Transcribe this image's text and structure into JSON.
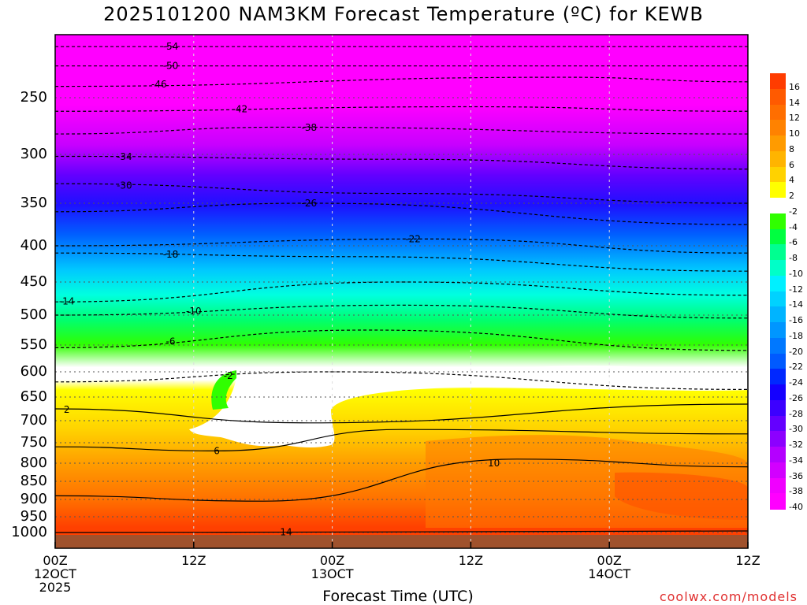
{
  "title": "2025101200 NAM3KM Forecast Temperature (ºC) for KEWB",
  "credit": "coolwx.com/models",
  "chart_data": {
    "type": "heatmap",
    "title": "2025101200 NAM3KM Forecast Temperature (ºC) for KEWB",
    "xlabel": "Forecast Time (UTC)",
    "ylabel": "",
    "x_ticks": [
      {
        "line1": "00Z",
        "line2": "12OCT",
        "line3": "2025",
        "hour": 0
      },
      {
        "line1": "12Z",
        "line2": "",
        "line3": "",
        "hour": 12
      },
      {
        "line1": "00Z",
        "line2": "13OCT",
        "line3": "",
        "hour": 24
      },
      {
        "line1": "12Z",
        "line2": "",
        "line3": "",
        "hour": 36
      },
      {
        "line1": "00Z",
        "line2": "14OCT",
        "line3": "",
        "hour": 48
      },
      {
        "line1": "12Z",
        "line2": "",
        "line3": "",
        "hour": 60
      }
    ],
    "xlim": [
      0,
      60
    ],
    "y_ticks": [
      "250",
      "300",
      "350",
      "400",
      "450",
      "500",
      "550",
      "600",
      "650",
      "700",
      "750",
      "800",
      "850",
      "900",
      "950",
      "1000"
    ],
    "y_values": [
      250,
      300,
      350,
      400,
      450,
      500,
      550,
      600,
      650,
      700,
      750,
      800,
      850,
      900,
      950,
      1000
    ],
    "ylim": [
      200,
      1030
    ],
    "colorbar": {
      "labels": [
        "16",
        "14",
        "12",
        "10",
        "8",
        "6",
        "4",
        "2",
        "-2",
        "-4",
        "-6",
        "-8",
        "-10",
        "-12",
        "-14",
        "-16",
        "-18",
        "-20",
        "-22",
        "-24",
        "-26",
        "-28",
        "-30",
        "-32",
        "-34",
        "-36",
        "-38",
        "-40"
      ],
      "colors": [
        "#ff3c00",
        "#ff5a00",
        "#ff6e00",
        "#ff8200",
        "#ff9b00",
        "#ffb400",
        "#ffd200",
        "#ffff00",
        "#ffffff",
        "#30ff00",
        "#00ff40",
        "#00ff90",
        "#00ffc8",
        "#00f0ff",
        "#00d2ff",
        "#00b4ff",
        "#0096ff",
        "#0078ff",
        "#005aff",
        "#0028ff",
        "#1400ff",
        "#3c00ff",
        "#6400ff",
        "#8c00ff",
        "#b400ff",
        "#d200ff",
        "#f000ff",
        "#ff00ff"
      ]
    },
    "isotherms": [
      {
        "value": -54,
        "label": "-54",
        "hours": [
          0,
          60
        ],
        "pressure": [
          205,
          205
        ],
        "x_label_hour": 10
      },
      {
        "value": -50,
        "label": "-50",
        "hours": [
          0,
          60
        ],
        "pressure": [
          222,
          222
        ],
        "x_label_hour": 10
      },
      {
        "value": -46,
        "label": "-46",
        "hours": [
          0,
          44,
          60
        ],
        "pressure": [
          240,
          232,
          236
        ],
        "x_label_hour": 9
      },
      {
        "value": -42,
        "label": "-42",
        "hours": [
          0,
          36,
          60
        ],
        "pressure": [
          262,
          258,
          262
        ],
        "x_label_hour": 16
      },
      {
        "value": -38,
        "label": "-38",
        "hours": [
          0,
          20,
          60
        ],
        "pressure": [
          282,
          276,
          282
        ],
        "x_label_hour": 22
      },
      {
        "value": -34,
        "label": "-34",
        "hours": [
          0,
          30,
          60
        ],
        "pressure": [
          302,
          305,
          315
        ],
        "x_label_hour": 6
      },
      {
        "value": -30,
        "label": "-30",
        "hours": [
          0,
          30,
          60
        ],
        "pressure": [
          330,
          340,
          350
        ],
        "x_label_hour": 6
      },
      {
        "value": -26,
        "label": "-26",
        "hours": [
          0,
          22,
          60
        ],
        "pressure": [
          360,
          350,
          375
        ],
        "x_label_hour": 22
      },
      {
        "value": -22,
        "label": "-22",
        "hours": [
          0,
          32,
          60
        ],
        "pressure": [
          400,
          392,
          410
        ],
        "x_label_hour": 31
      },
      {
        "value": -18,
        "label": "-18",
        "hours": [
          0,
          26,
          60
        ],
        "pressure": [
          410,
          415,
          435
        ],
        "x_label_hour": 10
      },
      {
        "value": -14,
        "label": "-14",
        "hours": [
          0,
          30,
          60
        ],
        "pressure": [
          480,
          450,
          470
        ],
        "x_label_hour": 1
      },
      {
        "value": -10,
        "label": "-10",
        "hours": [
          0,
          30,
          60
        ],
        "pressure": [
          500,
          485,
          505
        ],
        "x_label_hour": 12
      },
      {
        "value": -6,
        "label": "-6",
        "hours": [
          0,
          27,
          60
        ],
        "pressure": [
          555,
          525,
          560
        ],
        "x_label_hour": 10
      },
      {
        "value": -2,
        "label": "-2",
        "hours": [
          0,
          24,
          60
        ],
        "pressure": [
          620,
          600,
          635
        ],
        "x_label_hour": 15
      },
      {
        "value": 2,
        "label": "2",
        "hours": [
          0,
          22,
          60
        ],
        "pressure": [
          675,
          705,
          665
        ],
        "x_label_hour": 1
      },
      {
        "value": 6,
        "label": "6",
        "hours": [
          0,
          14,
          30,
          60
        ],
        "pressure": [
          760,
          770,
          720,
          730
        ],
        "x_label_hour": 14
      },
      {
        "value": 10,
        "label": "10",
        "hours": [
          0,
          18,
          40,
          60
        ],
        "pressure": [
          890,
          905,
          790,
          810
        ],
        "x_label_hour": 38
      },
      {
        "value": 14,
        "label": "14",
        "hours": [
          0,
          30,
          60
        ],
        "pressure": [
          1000,
          998,
          995
        ],
        "x_label_hour": 20
      }
    ]
  }
}
